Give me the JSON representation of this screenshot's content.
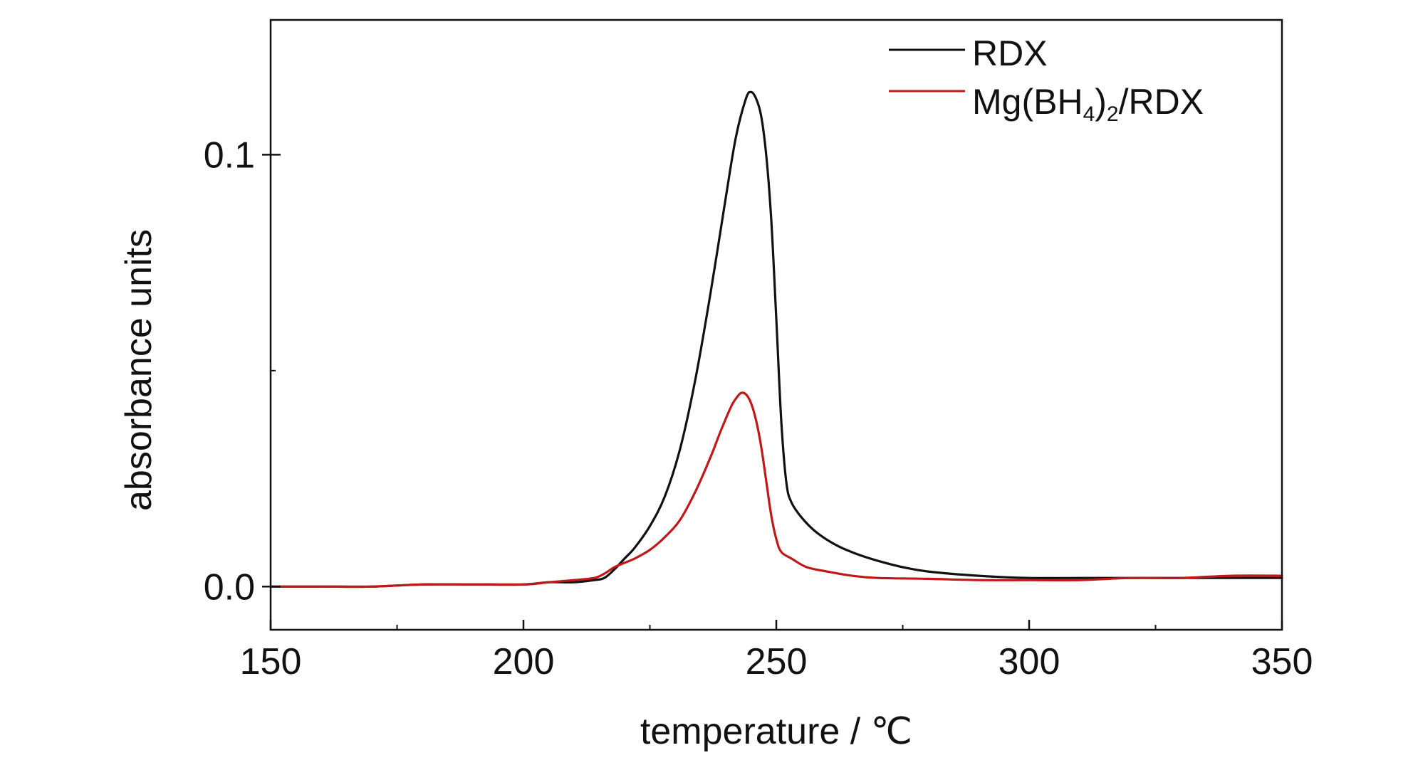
{
  "chart_data": {
    "type": "line",
    "xlabel": "temperature / ℃",
    "ylabel": "absorbance units",
    "xlim": [
      150,
      350
    ],
    "ylim": [
      -0.01,
      0.1312
    ],
    "x_ticks": [
      150,
      200,
      250,
      300,
      350
    ],
    "x_tick_labels": [
      "150",
      "200",
      "250",
      "300",
      "350"
    ],
    "x_minor_ticks": [
      175,
      225,
      275,
      325
    ],
    "y_ticks": [
      0.0,
      0.1
    ],
    "y_tick_labels": [
      "0.0",
      "0.1"
    ],
    "y_minor_ticks": [
      0.05
    ],
    "grid": false,
    "legend_position": "top-right",
    "legend_labels": {
      "rdx": "RDX",
      "mg_prefix": "Mg(BH",
      "mg_sub4": "4",
      "mg_mid": ")",
      "mg_sub2": "2",
      "mg_suffix": "/RDX"
    },
    "series": [
      {
        "name": "RDX",
        "color": "#111111",
        "x": [
          150,
          160,
          170,
          180,
          190,
          200,
          205,
          210,
          214,
          216,
          218,
          220,
          222,
          225,
          228,
          231,
          234,
          237,
          240,
          242,
          244,
          245,
          246,
          247,
          248,
          249,
          250,
          251,
          252,
          253,
          255,
          258,
          262,
          266,
          270,
          275,
          280,
          290,
          300,
          310,
          320,
          330,
          340,
          350
        ],
        "y": [
          0.0,
          0.0,
          0.0,
          0.0005,
          0.0005,
          0.0005,
          0.001,
          0.001,
          0.0015,
          0.002,
          0.004,
          0.0065,
          0.009,
          0.014,
          0.021,
          0.032,
          0.048,
          0.068,
          0.09,
          0.104,
          0.113,
          0.1145,
          0.113,
          0.109,
          0.1,
          0.085,
          0.062,
          0.038,
          0.024,
          0.0195,
          0.016,
          0.0125,
          0.0095,
          0.0075,
          0.006,
          0.0045,
          0.0035,
          0.0025,
          0.002,
          0.002,
          0.002,
          0.002,
          0.002,
          0.002
        ]
      },
      {
        "name": "Mg(BH4)2/RDX",
        "color": "#c01818",
        "x": [
          150,
          160,
          170,
          180,
          190,
          200,
          205,
          210,
          214,
          216,
          218,
          220,
          222,
          225,
          228,
          231,
          234,
          237,
          239,
          241,
          242,
          243,
          244,
          245,
          246,
          247,
          248,
          249,
          250,
          251,
          253,
          256,
          260,
          265,
          270,
          280,
          290,
          300,
          310,
          320,
          330,
          340,
          350
        ],
        "y": [
          0.0,
          0.0,
          0.0,
          0.0005,
          0.0005,
          0.0005,
          0.001,
          0.0015,
          0.002,
          0.003,
          0.0045,
          0.0055,
          0.0065,
          0.0085,
          0.0115,
          0.0155,
          0.022,
          0.03,
          0.036,
          0.0415,
          0.0435,
          0.0448,
          0.0445,
          0.0425,
          0.0385,
          0.0325,
          0.0245,
          0.0165,
          0.011,
          0.008,
          0.0065,
          0.0045,
          0.0035,
          0.0025,
          0.002,
          0.0018,
          0.0015,
          0.0015,
          0.0015,
          0.002,
          0.002,
          0.0025,
          0.0025
        ]
      }
    ]
  }
}
